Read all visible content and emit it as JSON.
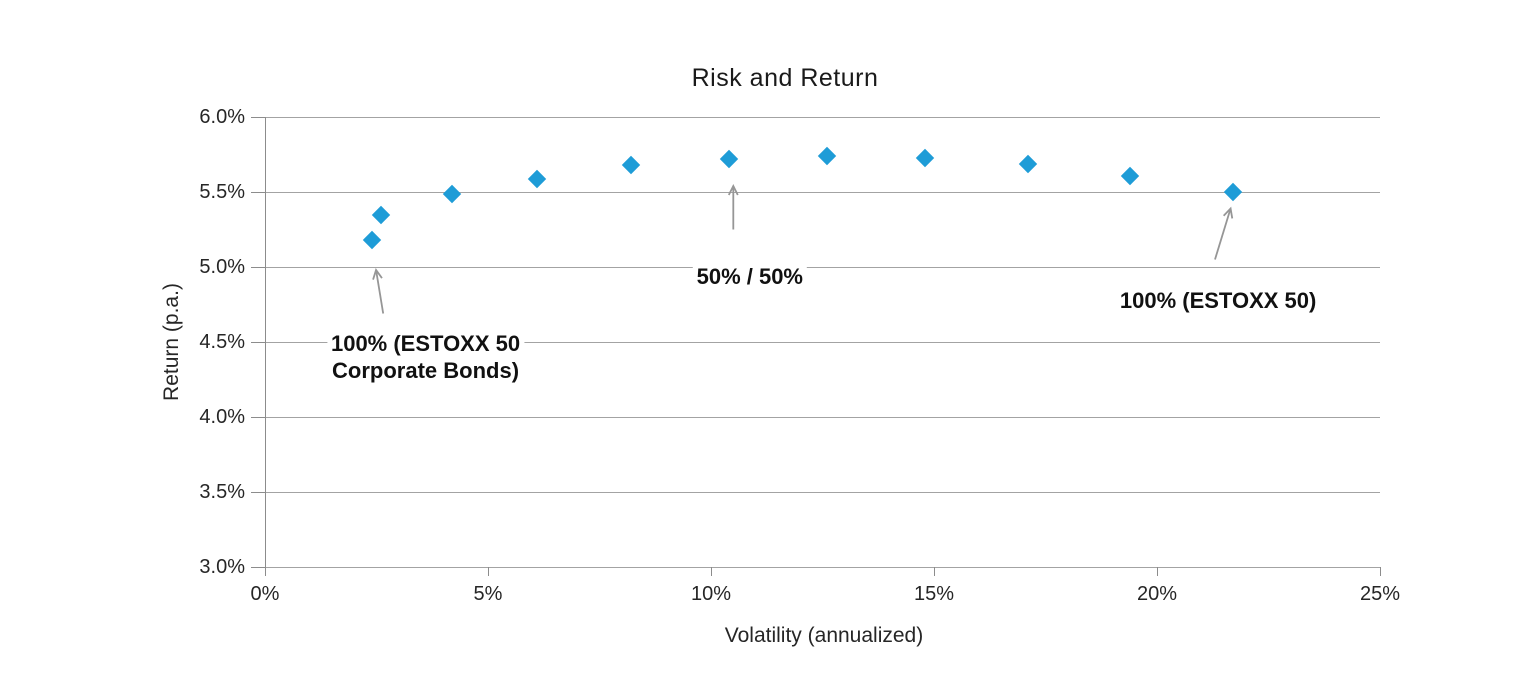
{
  "chart_data": {
    "type": "scatter",
    "title": "Risk and Return",
    "xlabel": "Volatility (annualized)",
    "ylabel": "Return (p.a.)",
    "xlim": [
      0,
      25
    ],
    "ylim": [
      3.0,
      6.0
    ],
    "grid": "horizontal-only",
    "legend": "none",
    "marker": "diamond",
    "x_ticks": [
      {
        "value": 0,
        "label": "0%"
      },
      {
        "value": 5,
        "label": "5%"
      },
      {
        "value": 10,
        "label": "10%"
      },
      {
        "value": 15,
        "label": "15%"
      },
      {
        "value": 20,
        "label": "20%"
      },
      {
        "value": 25,
        "label": "25%"
      }
    ],
    "y_ticks": [
      {
        "value": 3.0,
        "label": "3.0%"
      },
      {
        "value": 3.5,
        "label": "3.5%"
      },
      {
        "value": 4.0,
        "label": "4.0%"
      },
      {
        "value": 4.5,
        "label": "4.5%"
      },
      {
        "value": 5.0,
        "label": "5.0%"
      },
      {
        "value": 5.5,
        "label": "5.5%"
      },
      {
        "value": 6.0,
        "label": "6.0%"
      }
    ],
    "points": [
      {
        "x": 2.4,
        "y": 5.18
      },
      {
        "x": 2.6,
        "y": 5.35
      },
      {
        "x": 4.2,
        "y": 5.49
      },
      {
        "x": 6.1,
        "y": 5.59
      },
      {
        "x": 8.2,
        "y": 5.68
      },
      {
        "x": 10.4,
        "y": 5.72
      },
      {
        "x": 12.6,
        "y": 5.74
      },
      {
        "x": 14.8,
        "y": 5.73
      },
      {
        "x": 17.1,
        "y": 5.69
      },
      {
        "x": 19.4,
        "y": 5.61
      },
      {
        "x": 21.7,
        "y": 5.5
      }
    ],
    "annotations": [
      {
        "lines": [
          "100% (ESTOXX 50",
          "Corporate Bonds)"
        ],
        "label_anchor": {
          "x": 3.6,
          "y": 4.58
        },
        "arrow": {
          "from": {
            "x": 2.65,
            "y": 4.69
          },
          "to": {
            "x": 2.49,
            "y": 4.98
          }
        }
      },
      {
        "lines": [
          "50% / 50%"
        ],
        "label_anchor": {
          "x": 10.87,
          "y": 5.03
        },
        "arrow": {
          "from": {
            "x": 10.5,
            "y": 5.25
          },
          "to": {
            "x": 10.5,
            "y": 5.54
          }
        }
      },
      {
        "lines": [
          "100% (ESTOXX 50)"
        ],
        "label_anchor": {
          "x": 21.37,
          "y": 4.87
        },
        "arrow": {
          "from": {
            "x": 21.3,
            "y": 5.05
          },
          "to": {
            "x": 21.65,
            "y": 5.39
          }
        }
      }
    ],
    "colors": {
      "point": "#1e9cd7",
      "gridline": "#a3a3a3",
      "axis": "#8c8c8c",
      "arrow": "#969696",
      "tick_text": "#262626",
      "title_text": "#1a1a1a",
      "annotation_text": "#111111"
    }
  }
}
